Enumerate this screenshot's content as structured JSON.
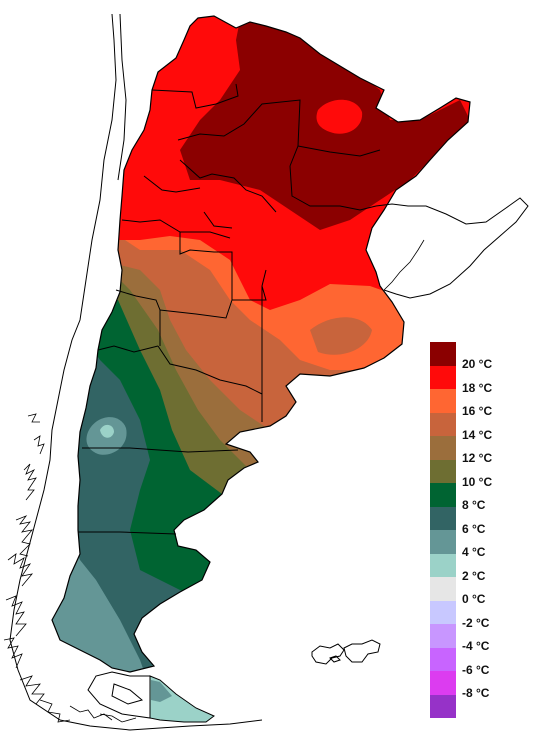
{
  "map": {
    "colors": {
      "c20": "#8b0000",
      "c18": "#ff0a0a",
      "c16": "#ff6632",
      "c14": "#c8643c",
      "c12": "#9b6e3c",
      "c10": "#6e6e32",
      "c8": "#006432",
      "c6": "#326464",
      "c4": "#649696",
      "c2": "#9bd2c8",
      "outline": "#000000"
    }
  },
  "legend": {
    "items": [
      {
        "label": "20 °C",
        "color": "#8b0000"
      },
      {
        "label": "18 °C",
        "color": "#ff0a0a"
      },
      {
        "label": "16 °C",
        "color": "#ff6632"
      },
      {
        "label": "14 °C",
        "color": "#c8643c"
      },
      {
        "label": "12 °C",
        "color": "#9b6e3c"
      },
      {
        "label": "10 °C",
        "color": "#6e6e32"
      },
      {
        "label": "8 °C",
        "color": "#006432"
      },
      {
        "label": "6 °C",
        "color": "#326464"
      },
      {
        "label": "4 °C",
        "color": "#649696"
      },
      {
        "label": "2 °C",
        "color": "#9bd2c8"
      },
      {
        "label": "0 °C",
        "color": "#e6e6e6"
      },
      {
        "label": "-2 °C",
        "color": "#c8c8ff"
      },
      {
        "label": "-4 °C",
        "color": "#c896ff"
      },
      {
        "label": "-6 °C",
        "color": "#c864ff"
      },
      {
        "label": "-8 °C",
        "color": "#dc3cf0"
      }
    ],
    "bottom_color": "#9632c8"
  }
}
